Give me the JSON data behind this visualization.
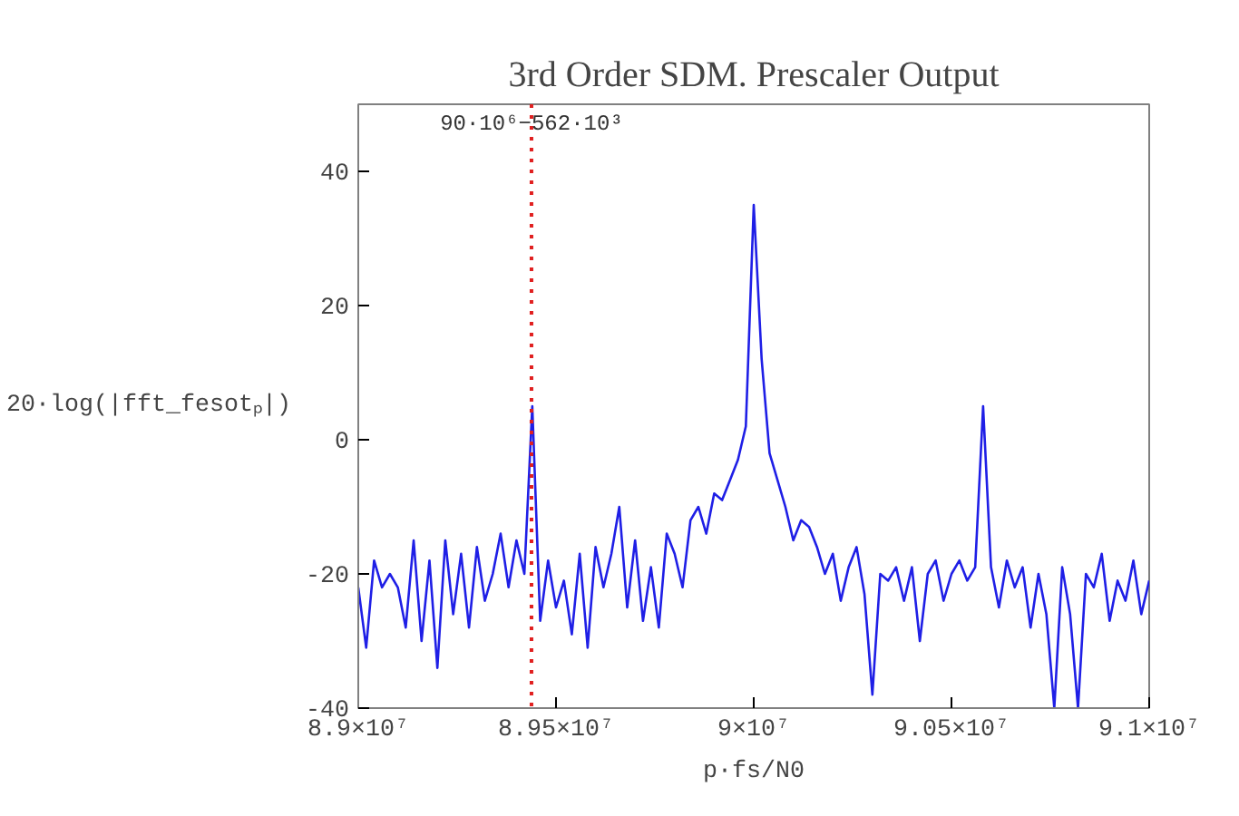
{
  "chart_data": {
    "type": "line",
    "title": "3rd Order SDM. Prescaler Output",
    "xlabel": "p·fs/N0",
    "ylabel": "20·log(|fft_fesotₚ|)",
    "xlim": [
      89000000,
      91000000
    ],
    "ylim": [
      -40,
      50
    ],
    "xticks": [
      {
        "value": 89000000,
        "label": "8.9×10⁷"
      },
      {
        "value": 89500000,
        "label": "8.95×10⁷"
      },
      {
        "value": 90000000,
        "label": "9×10⁷"
      },
      {
        "value": 90500000,
        "label": "9.05×10⁷"
      },
      {
        "value": 91000000,
        "label": "9.1×10⁷"
      }
    ],
    "yticks": [
      -40,
      -20,
      0,
      20,
      40
    ],
    "grid": false,
    "ref_lines": [
      {
        "axis": "x",
        "value": 89438000,
        "label": "90·10⁶−562·10³",
        "color": "#e02020",
        "line_style": "dotted"
      }
    ],
    "x": [
      89000000,
      89020000,
      89040000,
      89060000,
      89080000,
      89100000,
      89120000,
      89140000,
      89160000,
      89180000,
      89200000,
      89220000,
      89240000,
      89260000,
      89280000,
      89300000,
      89320000,
      89340000,
      89360000,
      89380000,
      89400000,
      89420000,
      89440000,
      89460000,
      89480000,
      89500000,
      89520000,
      89540000,
      89560000,
      89580000,
      89600000,
      89620000,
      89640000,
      89660000,
      89680000,
      89700000,
      89720000,
      89740000,
      89760000,
      89780000,
      89800000,
      89820000,
      89840000,
      89860000,
      89880000,
      89900000,
      89920000,
      89940000,
      89960000,
      89980000,
      90000000,
      90020000,
      90040000,
      90060000,
      90080000,
      90100000,
      90120000,
      90140000,
      90160000,
      90180000,
      90200000,
      90220000,
      90240000,
      90260000,
      90280000,
      90300000,
      90320000,
      90340000,
      90360000,
      90380000,
      90400000,
      90420000,
      90440000,
      90460000,
      90480000,
      90500000,
      90520000,
      90540000,
      90560000,
      90580000,
      90600000,
      90620000,
      90640000,
      90660000,
      90680000,
      90700000,
      90720000,
      90740000,
      90760000,
      90780000,
      90800000,
      90820000,
      90840000,
      90860000,
      90880000,
      90900000,
      90920000,
      90940000,
      90960000,
      90980000,
      91000000
    ],
    "series": [
      {
        "color": "#1f1fe6",
        "values": [
          -22,
          -31,
          -18,
          -22,
          -20,
          -22,
          -28,
          -15,
          -30,
          -18,
          -34,
          -15,
          -26,
          -17,
          -28,
          -16,
          -24,
          -20,
          -14,
          -22,
          -15,
          -20,
          5,
          -27,
          -18,
          -25,
          -21,
          -29,
          -17,
          -31,
          -16,
          -22,
          -17,
          -10,
          -25,
          -15,
          -27,
          -19,
          -28,
          -14,
          -17,
          -22,
          -12,
          -10,
          -14,
          -8,
          -9,
          -6,
          -3,
          2,
          35,
          12,
          -2,
          -6,
          -10,
          -15,
          -12,
          -13,
          -16,
          -20,
          -17,
          -24,
          -19,
          -16,
          -23,
          -38,
          -20,
          -21,
          -19,
          -24,
          -19,
          -30,
          -20,
          -18,
          -24,
          -20,
          -18,
          -21,
          -19,
          5,
          -19,
          -25,
          -18,
          -22,
          -19,
          -28,
          -20,
          -26,
          -40,
          -19,
          -26,
          -40,
          -20,
          -22,
          -17,
          -27,
          -21,
          -24,
          -18,
          -26,
          -21
        ]
      }
    ]
  }
}
